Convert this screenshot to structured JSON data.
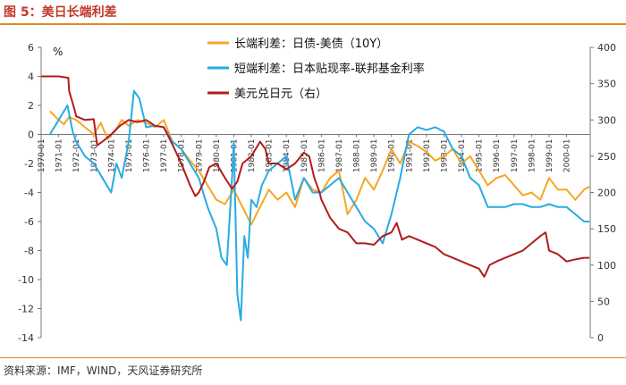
{
  "figure": {
    "title": "图 5：美日长端利差",
    "source": "资料来源：IMF，WIND，天风证券研究所"
  },
  "chart_data": {
    "type": "line",
    "y_unit_label": "%",
    "grid": false,
    "legend_placement": "top-center",
    "x_tick_labels": [
      "1970-01",
      "1971-01",
      "1972-01",
      "1973-01",
      "1974-01",
      "1975-01",
      "1976-01",
      "1977-01",
      "1978-01",
      "1979-01",
      "1980-01",
      "1981-01",
      "1982-01",
      "1983-01",
      "1984-01",
      "1985-01",
      "1986-01",
      "1987-01",
      "1988-01",
      "1989-01",
      "1990-01",
      "1991-01",
      "1992-01",
      "1993-01",
      "1994-01",
      "1995-01",
      "1996-01",
      "1997-01",
      "1998-01",
      "1999-01",
      "2000-01"
    ],
    "xlim": [
      1970.0,
      2001.35
    ],
    "ylim_left": [
      -14,
      6
    ],
    "yticks_left": [
      -14,
      -12,
      -10,
      -8,
      -6,
      -4,
      -2,
      0,
      2,
      4,
      6
    ],
    "ylim_right": [
      0,
      400
    ],
    "yticks_right": [
      0,
      50,
      100,
      150,
      200,
      250,
      300,
      350,
      400
    ],
    "colors": {
      "long_spread": "#f5a623",
      "short_spread": "#29abe2",
      "usdjpy": "#b01c1c"
    },
    "series": [
      {
        "key": "long_spread",
        "name": "长端利差：日债-美债（10Y）",
        "axis": "left",
        "x": [
          1970.5,
          1971.0,
          1971.3,
          1971.6,
          1972.0,
          1972.5,
          1973.0,
          1973.4,
          1973.8,
          1974.2,
          1974.6,
          1975.0,
          1975.5,
          1976.0,
          1976.5,
          1977.0,
          1977.5,
          1978.0,
          1978.5,
          1979.0,
          1979.5,
          1980.0,
          1980.5,
          1981.0,
          1981.5,
          1982.0,
          1982.5,
          1983.0,
          1983.5,
          1984.0,
          1984.5,
          1985.0,
          1985.5,
          1986.0,
          1986.5,
          1987.0,
          1987.5,
          1988.0,
          1988.5,
          1989.0,
          1989.5,
          1990.0,
          1990.5,
          1991.0,
          1991.5,
          1992.0,
          1992.5,
          1993.0,
          1993.5,
          1994.0,
          1994.5,
          1995.0,
          1995.5,
          1996.0,
          1996.5,
          1997.0,
          1997.5,
          1998.0,
          1998.5,
          1999.0,
          1999.5,
          2000.0,
          2000.5,
          2001.0,
          2001.3
        ],
        "values": [
          1.6,
          1.0,
          0.7,
          1.2,
          1.0,
          0.5,
          0.0,
          0.8,
          -0.3,
          0.2,
          1.0,
          0.6,
          1.0,
          0.8,
          0.5,
          1.0,
          -0.5,
          -1.0,
          -1.8,
          -2.5,
          -3.5,
          -4.5,
          -4.8,
          -3.8,
          -5.0,
          -6.2,
          -5.0,
          -3.8,
          -4.5,
          -4.0,
          -5.0,
          -3.0,
          -3.8,
          -4.0,
          -3.0,
          -2.5,
          -5.5,
          -4.5,
          -3.0,
          -3.8,
          -2.5,
          -1.0,
          -2.0,
          -0.5,
          -0.8,
          -1.2,
          -1.8,
          -1.5,
          -1.0,
          -2.0,
          -1.5,
          -2.5,
          -3.5,
          -3.0,
          -2.8,
          -3.5,
          -4.2,
          -4.0,
          -4.5,
          -3.0,
          -3.8,
          -3.8,
          -4.5,
          -3.8,
          -3.6
        ]
      },
      {
        "key": "short_spread",
        "name": "短端利差：日本贴现率-联邦基金利率",
        "axis": "left",
        "x": [
          1970.5,
          1971.0,
          1971.5,
          1971.8,
          1972.0,
          1972.5,
          1973.0,
          1973.5,
          1974.0,
          1974.3,
          1974.6,
          1975.0,
          1975.3,
          1975.6,
          1976.0,
          1976.5,
          1977.0,
          1977.5,
          1978.0,
          1978.5,
          1979.0,
          1979.5,
          1980.0,
          1980.3,
          1980.6,
          1980.9,
          1981.0,
          1981.2,
          1981.4,
          1981.6,
          1981.8,
          1982.0,
          1982.3,
          1982.6,
          1983.0,
          1983.5,
          1984.0,
          1984.5,
          1985.0,
          1985.5,
          1986.0,
          1986.5,
          1987.0,
          1987.5,
          1988.0,
          1988.5,
          1989.0,
          1989.5,
          1990.0,
          1990.5,
          1991.0,
          1991.5,
          1992.0,
          1992.5,
          1993.0,
          1993.5,
          1994.0,
          1994.5,
          1995.0,
          1995.5,
          1996.0,
          1996.5,
          1997.0,
          1997.5,
          1998.0,
          1998.5,
          1999.0,
          1999.5,
          2000.0,
          2000.5,
          2001.0,
          2001.3
        ],
        "values": [
          0.0,
          1.0,
          2.0,
          0.2,
          -0.5,
          -1.5,
          -2.0,
          -3.0,
          -4.0,
          -2.0,
          -3.0,
          -0.5,
          3.0,
          2.5,
          0.5,
          0.6,
          0.5,
          -0.5,
          -1.0,
          -2.0,
          -3.0,
          -5.0,
          -6.5,
          -8.5,
          -9.0,
          -3.0,
          -0.5,
          -11.0,
          -12.8,
          -7.0,
          -8.5,
          -4.5,
          -5.0,
          -3.5,
          -2.5,
          -2.0,
          -1.5,
          -4.5,
          -3.0,
          -4.0,
          -4.0,
          -3.5,
          -3.0,
          -4.0,
          -5.0,
          -6.0,
          -6.5,
          -7.5,
          -5.5,
          -3.0,
          0.0,
          0.5,
          0.3,
          0.5,
          0.2,
          -1.0,
          -1.5,
          -3.0,
          -3.5,
          -5.0,
          -5.0,
          -5.0,
          -4.8,
          -4.8,
          -5.0,
          -5.0,
          -4.8,
          -5.0,
          -5.0,
          -5.5,
          -6.0,
          -6.0
        ]
      },
      {
        "key": "usdjpy",
        "name": "美元兑日元（右）",
        "axis": "right",
        "x": [
          1970.0,
          1971.0,
          1971.55,
          1971.6,
          1971.9,
          1972.0,
          1972.5,
          1973.0,
          1973.2,
          1973.5,
          1974.0,
          1974.5,
          1975.0,
          1975.5,
          1976.0,
          1976.5,
          1977.0,
          1977.5,
          1978.0,
          1978.5,
          1978.8,
          1979.0,
          1979.3,
          1979.6,
          1980.0,
          1980.5,
          1980.9,
          1981.2,
          1981.5,
          1982.0,
          1982.5,
          1982.8,
          1983.0,
          1983.5,
          1984.0,
          1984.5,
          1985.0,
          1985.3,
          1985.6,
          1985.9,
          1986.0,
          1986.5,
          1987.0,
          1987.5,
          1988.0,
          1988.5,
          1989.0,
          1989.5,
          1990.0,
          1990.3,
          1990.6,
          1991.0,
          1991.5,
          1992.0,
          1992.5,
          1993.0,
          1993.5,
          1994.0,
          1994.5,
          1995.0,
          1995.3,
          1995.6,
          1996.0,
          1996.5,
          1997.0,
          1997.5,
          1998.0,
          1998.5,
          1998.8,
          1999.0,
          1999.5,
          2000.0,
          2000.5,
          2001.0,
          2001.3
        ],
        "values": [
          360,
          360,
          358,
          340,
          315,
          305,
          300,
          301,
          265,
          270,
          280,
          292,
          300,
          297,
          300,
          292,
          290,
          266,
          240,
          210,
          195,
          200,
          215,
          235,
          240,
          220,
          205,
          215,
          240,
          250,
          270,
          260,
          240,
          240,
          232,
          240,
          255,
          250,
          220,
          200,
          190,
          165,
          150,
          145,
          130,
          130,
          128,
          140,
          145,
          158,
          135,
          140,
          135,
          130,
          125,
          115,
          110,
          105,
          100,
          95,
          84,
          100,
          105,
          110,
          115,
          120,
          130,
          140,
          145,
          120,
          115,
          105,
          108,
          110,
          110
        ]
      }
    ]
  }
}
